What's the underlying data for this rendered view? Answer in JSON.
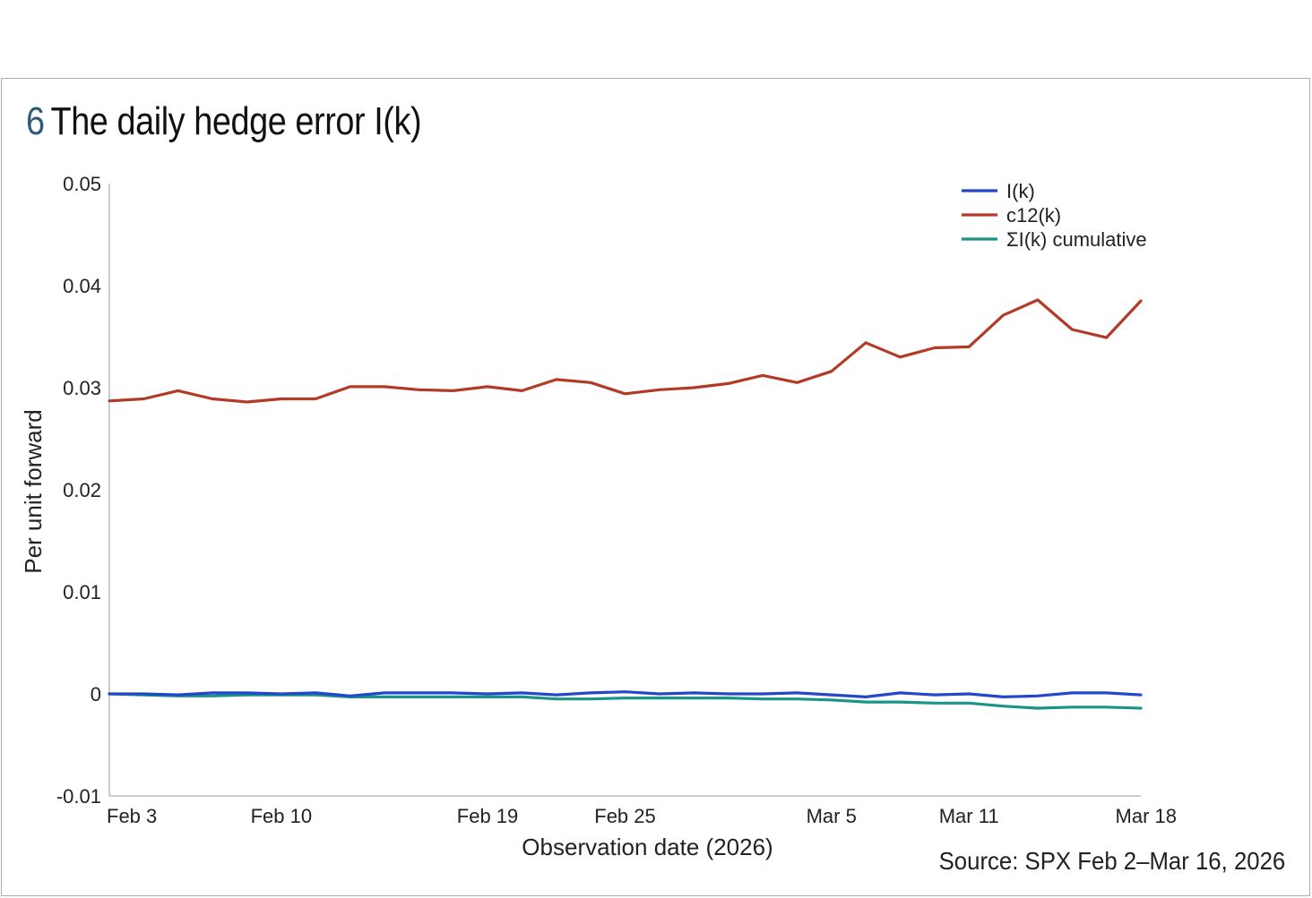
{
  "figure": {
    "number": "6",
    "title": "The daily hedge error I(k)",
    "source": "Source: SPX Feb 2–Mar 16, 2026"
  },
  "chart_data": {
    "type": "line",
    "xlabel": "Observation date (2026)",
    "ylabel": "Per unit forward",
    "ylim": [
      -0.01,
      0.05
    ],
    "yticks": [
      "0.05",
      "0.04",
      "0.03",
      "0.02",
      "0.01",
      "0",
      "-0.01"
    ],
    "xticks": [
      {
        "label": "Feb 3",
        "index": 0
      },
      {
        "label": "Feb 10",
        "index": 5
      },
      {
        "label": "Feb 19",
        "index": 11
      },
      {
        "label": "Feb 25",
        "index": 15
      },
      {
        "label": "Mar 5",
        "index": 21
      },
      {
        "label": "Mar 11",
        "index": 25
      },
      {
        "label": "Mar 18",
        "index": 30
      }
    ],
    "grid": false,
    "legend_position": "top-right",
    "series": [
      {
        "name": "I(k)",
        "color": "#2347c9",
        "values": [
          0.0,
          0.0,
          -0.0001,
          0.0001,
          0.0001,
          0.0,
          0.0001,
          -0.0002,
          0.0001,
          0.0001,
          0.0001,
          0.0,
          0.0001,
          -0.0001,
          0.0001,
          0.0002,
          0.0,
          0.0001,
          0.0,
          0.0,
          0.0001,
          -0.0001,
          -0.0003,
          0.0001,
          -0.0001,
          0.0,
          -0.0003,
          -0.0002,
          0.0001,
          0.0001,
          -0.0001
        ]
      },
      {
        "name": "c12(k)",
        "color": "#b33a26",
        "values": [
          0.0287,
          0.0289,
          0.0297,
          0.0289,
          0.0286,
          0.0289,
          0.0289,
          0.0301,
          0.0301,
          0.0298,
          0.0297,
          0.0301,
          0.0297,
          0.0308,
          0.0305,
          0.0294,
          0.0298,
          0.03,
          0.0304,
          0.0312,
          0.0305,
          0.0316,
          0.0344,
          0.033,
          0.0339,
          0.034,
          0.0371,
          0.0386,
          0.0357,
          0.0349,
          0.0385
        ]
      },
      {
        "name": "ΣI(k) cumulative",
        "color": "#1a9488",
        "values": [
          0.0,
          -0.0001,
          -0.0002,
          -0.0002,
          -0.0001,
          -0.0001,
          -0.0001,
          -0.0003,
          -0.0003,
          -0.0003,
          -0.0003,
          -0.0003,
          -0.0003,
          -0.0005,
          -0.0005,
          -0.0004,
          -0.0004,
          -0.0004,
          -0.0004,
          -0.0005,
          -0.0005,
          -0.0006,
          -0.0008,
          -0.0008,
          -0.0009,
          -0.0009,
          -0.0012,
          -0.0014,
          -0.0013,
          -0.0013,
          -0.0014
        ]
      }
    ]
  }
}
